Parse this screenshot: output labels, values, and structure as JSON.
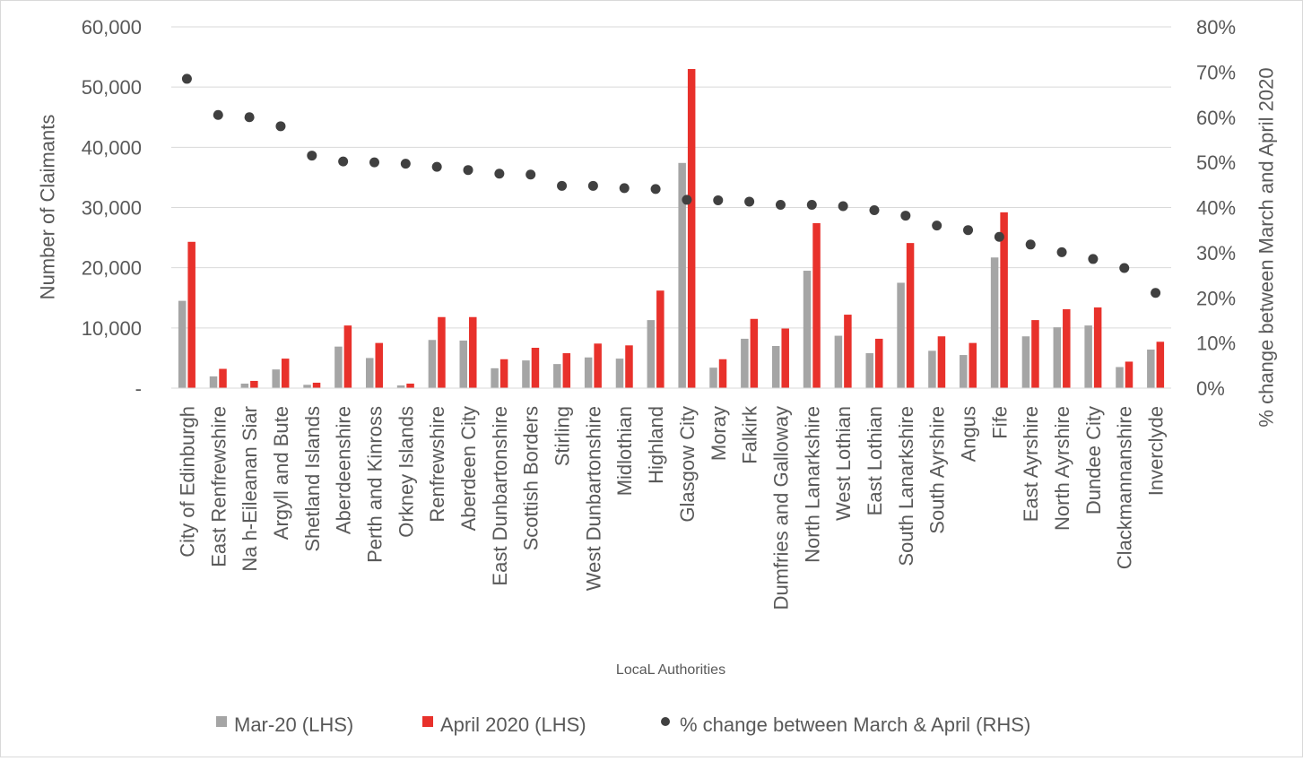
{
  "chart_data": {
    "type": "bar",
    "categories": [
      "City of Edinburgh",
      "East Renfrewshire",
      "Na h-Eileanan Siar",
      "Argyll and Bute",
      "Shetland Islands",
      "Aberdeenshire",
      "Perth and Kinross",
      "Orkney Islands",
      "Renfrewshire",
      "Aberdeen City",
      "East Dunbartonshire",
      "Scottish Borders",
      "Stirling",
      "West Dunbartonshire",
      "Midlothian",
      "Highland",
      "Glasgow City",
      "Moray",
      "Falkirk",
      "Dumfries and Galloway",
      "North Lanarkshire",
      "West Lothian",
      "East Lothian",
      "South Lanarkshire",
      "South Ayrshire",
      "Angus",
      "Fife",
      "East Ayrshire",
      "North Ayrshire",
      "Dundee City",
      "Clackmannanshire",
      "Inverclyde"
    ],
    "series": [
      {
        "name": "Mar-20 (LHS)",
        "kind": "bar",
        "axis": "left",
        "color": "#a5a5a5",
        "values": [
          14500,
          1950,
          750,
          3100,
          550,
          6900,
          5000,
          450,
          8000,
          7900,
          3300,
          4600,
          4000,
          5100,
          4900,
          11300,
          37400,
          3400,
          8200,
          7000,
          19500,
          8700,
          5800,
          17500,
          6200,
          5500,
          21700,
          8600,
          10100,
          10400,
          3500,
          6400
        ]
      },
      {
        "name": "April 2020 (LHS)",
        "kind": "bar",
        "axis": "right-bar",
        "color": "#e8312b",
        "values": [
          24300,
          3200,
          1200,
          4900,
          900,
          10400,
          7500,
          750,
          11800,
          11800,
          4800,
          6700,
          5800,
          7400,
          7100,
          16200,
          53000,
          4800,
          11500,
          9900,
          27400,
          12200,
          8200,
          24100,
          8600,
          7500,
          29200,
          11300,
          13100,
          13400,
          4400,
          7700
        ]
      },
      {
        "name": "% change between March & April (RHS)",
        "kind": "scatter",
        "axis": "right",
        "color": "#404040",
        "values": [
          68.5,
          60.5,
          60,
          58,
          51.5,
          50.2,
          50,
          49.7,
          49,
          48.3,
          47.5,
          47.3,
          44.8,
          44.8,
          44.3,
          44.1,
          41.7,
          41.6,
          41.3,
          40.6,
          40.6,
          40.3,
          39.4,
          38.2,
          36,
          35,
          33.5,
          31.8,
          30.1,
          28.6,
          26.6,
          21.1
        ]
      }
    ],
    "ylabel": "Number of Claimants",
    "y2label": "% change between March and April 2020",
    "xlabel": "LocaL Authorities",
    "ylim": [
      0,
      60000
    ],
    "y2lim": [
      0,
      80
    ],
    "y_ticks": [
      "-",
      "10,000",
      "20,000",
      "30,000",
      "40,000",
      "50,000",
      "60,000"
    ],
    "y2_ticks": [
      "0%",
      "10%",
      "20%",
      "30%",
      "40%",
      "50%",
      "60%",
      "70%",
      "80%"
    ],
    "grid": true,
    "legend_position": "bottom"
  }
}
